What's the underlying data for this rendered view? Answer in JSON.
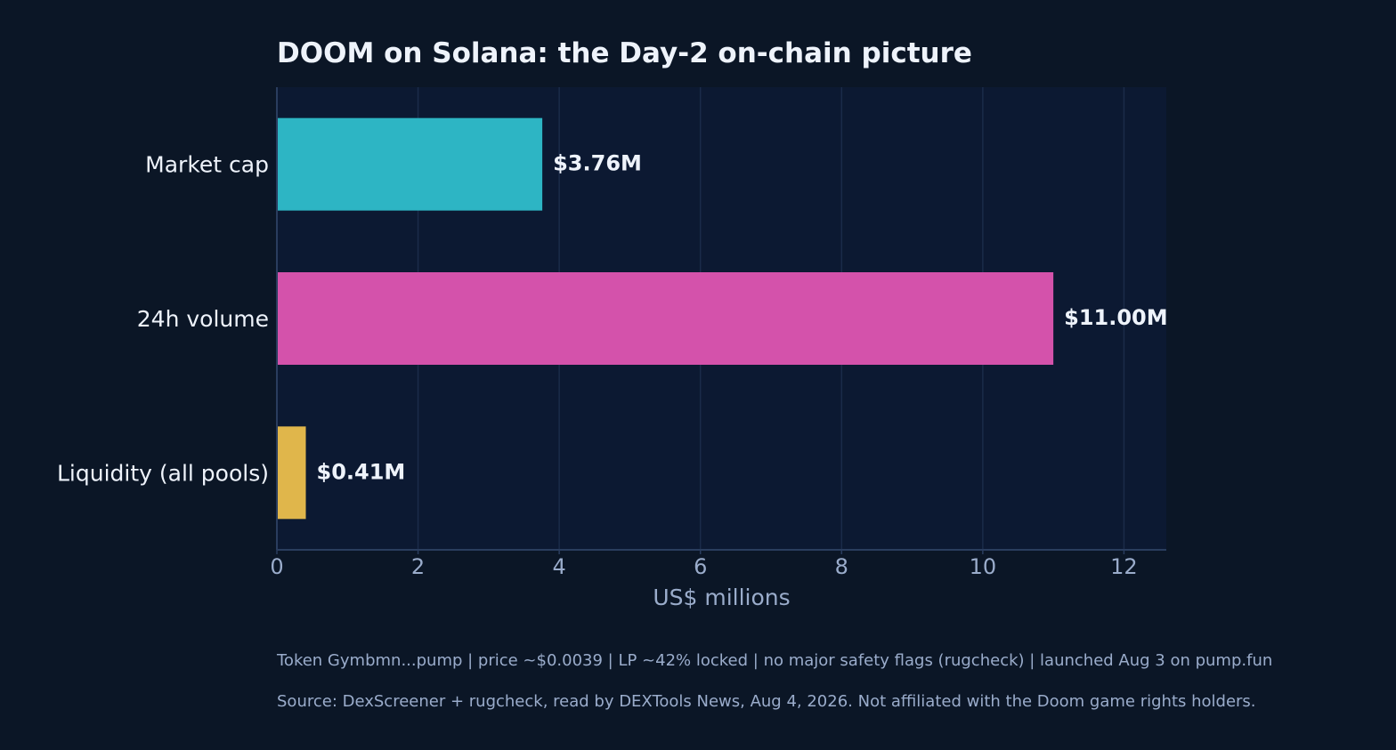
{
  "chart_data": {
    "type": "bar",
    "orientation": "horizontal",
    "title": "DOOM on Solana: the Day-2 on-chain picture",
    "xlabel": "US$ millions",
    "ylabel": "",
    "categories": [
      "Market cap",
      "24h volume",
      "Liquidity (all pools)"
    ],
    "values": [
      3.76,
      11.0,
      0.41
    ],
    "value_labels": [
      "$3.76M",
      "$11.00M",
      "$0.41M"
    ],
    "colors": [
      "#2db5c4",
      "#d452ab",
      "#e0b64b"
    ],
    "xlim": [
      0,
      12.6
    ],
    "xticks": [
      0,
      2,
      4,
      6,
      8,
      10,
      12
    ],
    "xtick_labels": [
      "0",
      "2",
      "4",
      "6",
      "8",
      "10",
      "12"
    ],
    "grid": "vertical",
    "notes": [
      "Token Gymbmn...pump  |  price ~$0.0039  |  LP ~42% locked  |  no major safety flags (rugcheck)  |  launched Aug 3 on pump.fun",
      "Source: DexScreener + rugcheck, read by DEXTools News, Aug 4, 2026.  Not affiliated with the Doom game rights holders."
    ]
  },
  "theme": {
    "background": "#0b1626",
    "plot_background": "#0c1932",
    "grid_color": "#1b2b49",
    "axis_color": "#2a3d5e"
  }
}
